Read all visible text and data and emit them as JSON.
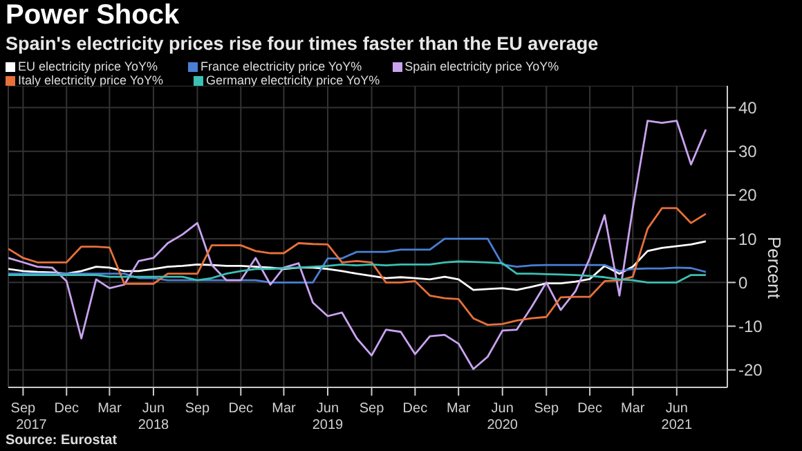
{
  "chart_data": {
    "type": "line",
    "title": "Power Shock",
    "subtitle": "Spain's electricity prices rise four times faster than the EU average",
    "ylabel": "Percent",
    "annotations": [
      "Source: Eurostat"
    ],
    "x": [
      "2017-08",
      "2017-09",
      "2017-10",
      "2017-11",
      "2017-12",
      "2018-01",
      "2018-02",
      "2018-03",
      "2018-04",
      "2018-05",
      "2018-06",
      "2018-07",
      "2018-08",
      "2018-09",
      "2018-10",
      "2018-11",
      "2018-12",
      "2019-01",
      "2019-02",
      "2019-03",
      "2019-04",
      "2019-05",
      "2019-06",
      "2019-07",
      "2019-08",
      "2019-09",
      "2019-10",
      "2019-11",
      "2019-12",
      "2020-01",
      "2020-02",
      "2020-03",
      "2020-04",
      "2020-05",
      "2020-06",
      "2020-07",
      "2020-08",
      "2020-09",
      "2020-10",
      "2020-11",
      "2020-12",
      "2021-01",
      "2021-02",
      "2021-03",
      "2021-04",
      "2021-05",
      "2021-06",
      "2021-07",
      "2021-08"
    ],
    "series": [
      {
        "name": "EU electricity price YoY%",
        "color": "#ffffff",
        "values": [
          3.1,
          2.6,
          2.4,
          2.3,
          2,
          2.6,
          3.6,
          3.4,
          2.6,
          2.6,
          3.1,
          3.6,
          3.8,
          4.1,
          4,
          3.8,
          3.8,
          3.6,
          3.4,
          3.1,
          3.4,
          3.4,
          3.1,
          2.6,
          2,
          1.5,
          1,
          1.2,
          1,
          0.7,
          1.3,
          0.7,
          -1.7,
          -1.5,
          -1.3,
          -1.7,
          -1,
          -0.2,
          -0.2,
          0.2,
          0.8,
          3.8,
          2,
          3.6,
          7.2,
          7.9,
          8.3,
          8.7,
          9.4
        ]
      },
      {
        "name": "France electricity price YoY%",
        "color": "#4a7fd4",
        "values": [
          2,
          2,
          2,
          2,
          2,
          2,
          2,
          2,
          2,
          1,
          1,
          0.5,
          0.5,
          0.5,
          0.5,
          0.5,
          0.5,
          0.5,
          0,
          0,
          0,
          0,
          5.5,
          5.5,
          7,
          7,
          7,
          7.5,
          7.5,
          7.5,
          10,
          10,
          10,
          10,
          4.1,
          3.6,
          3.9,
          4,
          4,
          4,
          4,
          4,
          2.6,
          3.1,
          3.2,
          3.2,
          3.4,
          3.3,
          2.4
        ]
      },
      {
        "name": "Spain electricity price YoY%",
        "color": "#c9a3f0",
        "values": [
          5.6,
          4.6,
          3.6,
          3.4,
          0.3,
          -12.8,
          0.7,
          -1.3,
          -0.5,
          4.9,
          5.6,
          9,
          11,
          13.6,
          4,
          0.5,
          0.5,
          5.6,
          -0.5,
          3.4,
          4.4,
          -4.6,
          -7.7,
          -6.9,
          -12.8,
          -16.7,
          -10.8,
          -11.3,
          -16.4,
          -12.3,
          -12,
          -14,
          -19.8,
          -17,
          -11,
          -10.8,
          -5.6,
          0,
          -6.3,
          -2,
          5.6,
          15.4,
          -3,
          17,
          37,
          36.5,
          37,
          27,
          35
        ]
      },
      {
        "name": "Italy electricity price YoY%",
        "color": "#e8703a",
        "values": [
          7.7,
          5.6,
          4.6,
          4.6,
          4.6,
          8.2,
          8.2,
          8,
          -0.3,
          -0.3,
          -0.3,
          2,
          2,
          2,
          8.5,
          8.5,
          8.5,
          7.2,
          6.7,
          6.7,
          9,
          8.8,
          8.7,
          4.6,
          4.9,
          4.6,
          0,
          0,
          0.3,
          -3,
          -3.6,
          -3.8,
          -8.2,
          -9.7,
          -9.5,
          -8.7,
          -8.2,
          -7.9,
          -3.4,
          -3.3,
          -3.3,
          0.3,
          0.5,
          1.3,
          12.3,
          17,
          17,
          13.6,
          15.7
        ]
      },
      {
        "name": "Germany electricity price YoY%",
        "color": "#3cc0b4",
        "values": [
          1.7,
          1.7,
          1.7,
          1.7,
          1.7,
          1.7,
          1.7,
          1.3,
          1.3,
          1.3,
          1.3,
          1.3,
          1.3,
          0.5,
          1,
          2,
          2.6,
          3.1,
          3.1,
          3.3,
          3.4,
          3.6,
          3.8,
          4.1,
          3.9,
          4.1,
          3.9,
          4.1,
          4.1,
          4.1,
          4.6,
          4.8,
          4.7,
          4.6,
          4.4,
          2,
          2,
          1.9,
          1.8,
          1.7,
          1.5,
          1.2,
          0.7,
          0.5,
          0,
          0,
          0,
          1.7,
          1.7
        ]
      }
    ],
    "xlim": [
      "2017-08",
      "2021-09-15"
    ],
    "xticks": [
      {
        "value": "2017-09",
        "label": "Sep\n2017"
      },
      {
        "value": "2017-12",
        "label": "Dec"
      },
      {
        "value": "2018-03",
        "label": "Mar"
      },
      {
        "value": "2018-06",
        "label": "Jun\n2018"
      },
      {
        "value": "2018-09",
        "label": "Sep"
      },
      {
        "value": "2018-12",
        "label": "Dec"
      },
      {
        "value": "2019-03",
        "label": "Mar"
      },
      {
        "value": "2019-06",
        "label": "Jun\n2019"
      },
      {
        "value": "2019-09",
        "label": "Sep"
      },
      {
        "value": "2019-12",
        "label": "Dec"
      },
      {
        "value": "2020-03",
        "label": "Mar"
      },
      {
        "value": "2020-06",
        "label": "Jun\n2020"
      },
      {
        "value": "2020-09",
        "label": "Sep"
      },
      {
        "value": "2020-12",
        "label": "Dec"
      },
      {
        "value": "2021-03",
        "label": "Mar"
      },
      {
        "value": "2021-06",
        "label": "Jun\n2021"
      }
    ],
    "ylim": [
      -24,
      45
    ],
    "yticks": [
      -20,
      -10,
      0,
      10,
      20,
      30,
      40
    ],
    "grid": true,
    "legend": "top left",
    "marker": "none",
    "line_style": "solid"
  }
}
